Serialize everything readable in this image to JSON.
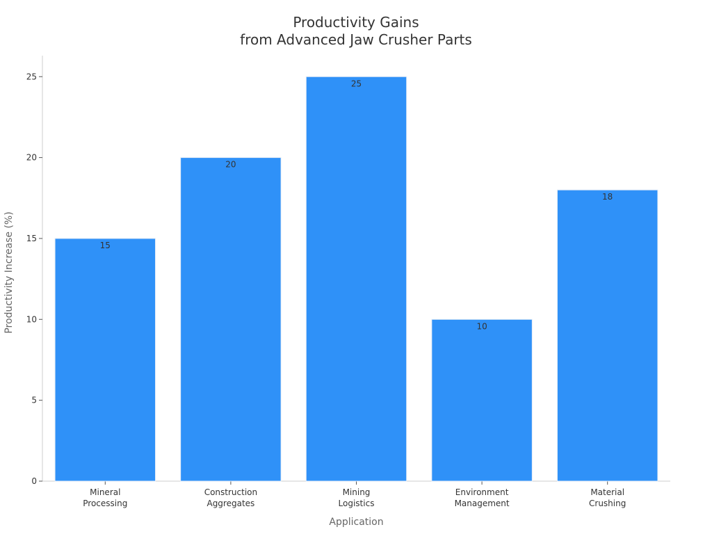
{
  "chart_data": {
    "type": "bar",
    "title_lines": [
      "Productivity Gains",
      "from Advanced Jaw Crusher Parts"
    ],
    "categories": [
      [
        "Mineral",
        "Processing"
      ],
      [
        "Construction",
        "Aggregates"
      ],
      [
        "Mining",
        "Logistics"
      ],
      [
        "Environment",
        "Management"
      ],
      [
        "Material",
        "Crushing"
      ]
    ],
    "values": [
      15,
      20,
      25,
      10,
      18
    ],
    "xlabel": "Application",
    "ylabel": "Productivity Increase (%)",
    "ylim": [
      0,
      26.3
    ],
    "yticks": [
      0,
      5,
      10,
      15,
      20,
      25
    ],
    "bar_color": "#2F91F8",
    "bar_edge_color": "#E8EEF6",
    "grid": false,
    "legend": "none"
  }
}
